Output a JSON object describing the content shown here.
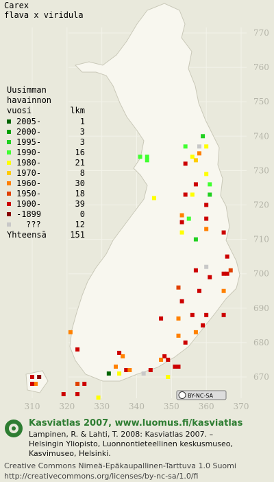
{
  "map": {
    "title": [
      "Carex",
      "flava x viridula"
    ],
    "legend": {
      "header": [
        "Uusimman",
        "havainnon",
        "vuosi",
        "lkm"
      ],
      "rows": [
        {
          "label": "2005-",
          "count": 1,
          "color": "#006400"
        },
        {
          "label": "2000-",
          "count": 3,
          "color": "#00a000"
        },
        {
          "label": "1995-",
          "count": 3,
          "color": "#20d020"
        },
        {
          "label": "1990-",
          "count": 16,
          "color": "#40ff30"
        },
        {
          "label": "1980-",
          "count": 21,
          "color": "#ffff00"
        },
        {
          "label": "1970-",
          "count": 8,
          "color": "#ffcc00"
        },
        {
          "label": "1960-",
          "count": 30,
          "color": "#ff8000"
        },
        {
          "label": "1950-",
          "count": 18,
          "color": "#e04000"
        },
        {
          "label": "1900-",
          "count": 39,
          "color": "#cc0000"
        },
        {
          "label": "-1899",
          "count": 0,
          "color": "#880000"
        },
        {
          "label": "???",
          "count": 12,
          "color": "#c8c8c8"
        }
      ],
      "total_label": "Yhteensä",
      "total": 151
    },
    "xlim": [
      310,
      370
    ],
    "ylim": [
      670,
      770
    ],
    "xticks": [
      310,
      320,
      330,
      340,
      350,
      360,
      370
    ],
    "yticks": [
      770,
      760,
      750,
      740,
      730,
      720,
      710,
      700,
      690,
      680,
      670
    ],
    "points": [
      [
        359,
        740,
        2
      ],
      [
        354,
        737,
        3
      ],
      [
        341,
        734,
        3
      ],
      [
        343,
        734,
        3
      ],
      [
        343,
        733,
        3
      ],
      [
        356,
        734,
        4
      ],
      [
        357,
        733,
        5
      ],
      [
        358,
        737,
        10
      ],
      [
        360,
        737,
        4
      ],
      [
        354,
        732,
        8
      ],
      [
        358,
        735,
        6
      ],
      [
        360,
        729,
        4
      ],
      [
        357,
        726,
        8
      ],
      [
        361,
        726,
        3
      ],
      [
        354,
        723,
        8
      ],
      [
        356,
        723,
        4
      ],
      [
        360,
        720,
        8
      ],
      [
        361,
        723,
        2
      ],
      [
        345,
        722,
        4
      ],
      [
        353,
        717,
        6
      ],
      [
        353,
        715,
        8
      ],
      [
        355,
        716,
        3
      ],
      [
        360,
        716,
        8
      ],
      [
        357,
        710,
        2
      ],
      [
        360,
        713,
        6
      ],
      [
        365,
        712,
        8
      ],
      [
        353,
        712,
        4
      ],
      [
        366,
        705,
        8
      ],
      [
        365,
        700,
        8
      ],
      [
        366,
        700,
        8
      ],
      [
        367,
        701,
        7
      ],
      [
        360,
        702,
        10
      ],
      [
        357,
        701,
        8
      ],
      [
        352,
        696,
        7
      ],
      [
        353,
        692,
        8
      ],
      [
        358,
        695,
        8
      ],
      [
        361,
        699,
        8
      ],
      [
        365,
        695,
        6
      ],
      [
        356,
        688,
        8
      ],
      [
        360,
        688,
        8
      ],
      [
        352,
        687,
        6
      ],
      [
        347,
        687,
        8
      ],
      [
        352,
        682,
        6
      ],
      [
        354,
        680,
        8
      ],
      [
        357,
        683,
        6
      ],
      [
        359,
        685,
        8
      ],
      [
        365,
        688,
        8
      ],
      [
        323,
        678,
        8
      ],
      [
        321,
        683,
        6
      ],
      [
        335,
        677,
        8
      ],
      [
        336,
        676,
        6
      ],
      [
        337,
        672,
        8
      ],
      [
        334,
        673,
        6
      ],
      [
        332,
        671,
        0
      ],
      [
        335,
        671,
        4
      ],
      [
        338,
        672,
        6
      ],
      [
        348,
        676,
        8
      ],
      [
        347,
        675,
        6
      ],
      [
        349,
        675,
        8
      ],
      [
        351,
        673,
        8
      ],
      [
        352,
        673,
        8
      ],
      [
        344,
        672,
        8
      ],
      [
        349,
        670,
        4
      ],
      [
        342,
        671,
        10
      ],
      [
        329,
        664,
        4
      ],
      [
        325,
        668,
        8
      ],
      [
        323,
        665,
        8
      ],
      [
        319,
        665,
        8
      ],
      [
        310,
        670,
        8
      ],
      [
        312,
        670,
        9
      ],
      [
        311,
        668,
        6
      ],
      [
        310,
        668,
        8
      ],
      [
        323,
        668,
        7
      ]
    ],
    "license_badge": "BY-NC-SA"
  },
  "footer": {
    "brand": "Kasviatlas 2007, www.luomus.fi/kasviatlas",
    "citation": [
      "Lampinen, R. & Lahti, T. 2008: Kasviatlas 2007. –",
      "Helsingin Yliopisto, Luonnontieteellinen keskusmuseo,",
      "Kasvimuseo, Helsinki."
    ],
    "license": [
      "Creative Commons Nimeä-Epäkaupallinen-Tarttuva 1.0 Suomi",
      "http://creativecommons.org/licenses/by-nc-sa/1.0/fi"
    ]
  }
}
